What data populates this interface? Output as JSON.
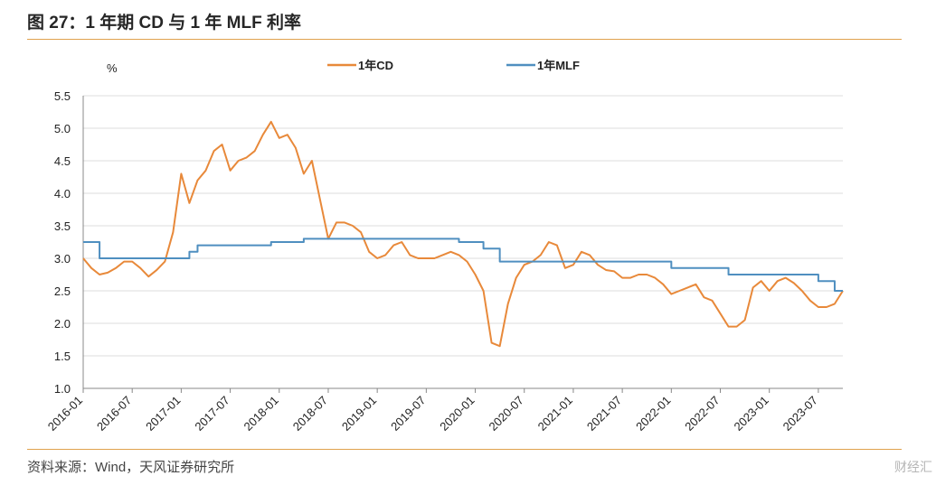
{
  "header": {
    "title": "图 27：1 年期 CD 与 1 年 MLF 利率"
  },
  "footer": {
    "source": "资料来源：Wind，天风证券研究所",
    "watermark": "财经汇"
  },
  "chart_data": {
    "type": "line",
    "ylabel": "%",
    "ylim": [
      1.0,
      5.5
    ],
    "yticks": [
      "1.0",
      "1.5",
      "2.0",
      "2.5",
      "3.0",
      "3.5",
      "4.0",
      "4.5",
      "5.0",
      "5.5"
    ],
    "xticks": [
      "2016-01",
      "2016-07",
      "2017-01",
      "2017-07",
      "2018-01",
      "2018-07",
      "2019-01",
      "2019-07",
      "2020-01",
      "2020-07",
      "2021-01",
      "2021-07",
      "2022-01",
      "2022-07",
      "2023-01",
      "2023-07"
    ],
    "legend_position": "top",
    "series": [
      {
        "name": "1年CD",
        "color": "#e8893a",
        "x": [
          "2016-01",
          "2016-02",
          "2016-03",
          "2016-04",
          "2016-05",
          "2016-06",
          "2016-07",
          "2016-08",
          "2016-09",
          "2016-10",
          "2016-11",
          "2016-12",
          "2017-01",
          "2017-02",
          "2017-03",
          "2017-04",
          "2017-05",
          "2017-06",
          "2017-07",
          "2017-08",
          "2017-09",
          "2017-10",
          "2017-11",
          "2017-12",
          "2018-01",
          "2018-02",
          "2018-03",
          "2018-04",
          "2018-05",
          "2018-06",
          "2018-07",
          "2018-08",
          "2018-09",
          "2018-10",
          "2018-11",
          "2018-12",
          "2019-01",
          "2019-02",
          "2019-03",
          "2019-04",
          "2019-05",
          "2019-06",
          "2019-07",
          "2019-08",
          "2019-09",
          "2019-10",
          "2019-11",
          "2019-12",
          "2020-01",
          "2020-02",
          "2020-03",
          "2020-04",
          "2020-05",
          "2020-06",
          "2020-07",
          "2020-08",
          "2020-09",
          "2020-10",
          "2020-11",
          "2020-12",
          "2021-01",
          "2021-02",
          "2021-03",
          "2021-04",
          "2021-05",
          "2021-06",
          "2021-07",
          "2021-08",
          "2021-09",
          "2021-10",
          "2021-11",
          "2021-12",
          "2022-01",
          "2022-02",
          "2022-03",
          "2022-04",
          "2022-05",
          "2022-06",
          "2022-07",
          "2022-08",
          "2022-09",
          "2022-10",
          "2022-11",
          "2022-12",
          "2023-01",
          "2023-02",
          "2023-03",
          "2023-04",
          "2023-05",
          "2023-06",
          "2023-07",
          "2023-08",
          "2023-09",
          "2023-10"
        ],
        "values": [
          3.0,
          2.85,
          2.75,
          2.78,
          2.85,
          2.95,
          2.95,
          2.85,
          2.72,
          2.82,
          2.95,
          3.4,
          4.3,
          3.85,
          4.2,
          4.35,
          4.65,
          4.75,
          4.35,
          4.5,
          4.55,
          4.65,
          4.9,
          5.1,
          4.85,
          4.9,
          4.7,
          4.3,
          4.5,
          3.9,
          3.3,
          3.55,
          3.55,
          3.5,
          3.4,
          3.1,
          3.0,
          3.05,
          3.2,
          3.25,
          3.05,
          3.0,
          3.0,
          3.0,
          3.05,
          3.1,
          3.05,
          2.95,
          2.75,
          2.5,
          1.7,
          1.65,
          2.3,
          2.7,
          2.9,
          2.95,
          3.05,
          3.25,
          3.2,
          2.85,
          2.9,
          3.1,
          3.05,
          2.9,
          2.82,
          2.8,
          2.7,
          2.7,
          2.75,
          2.75,
          2.7,
          2.6,
          2.45,
          2.5,
          2.55,
          2.6,
          2.4,
          2.35,
          2.15,
          1.95,
          1.95,
          2.05,
          2.55,
          2.65,
          2.5,
          2.65,
          2.7,
          2.62,
          2.5,
          2.35,
          2.25,
          2.25,
          2.3,
          2.5
        ]
      },
      {
        "name": "1年MLF",
        "color": "#4f8fc0",
        "x": [
          "2016-01",
          "2016-02",
          "2016-03",
          "2016-04",
          "2016-05",
          "2016-06",
          "2016-07",
          "2016-08",
          "2016-09",
          "2016-10",
          "2016-11",
          "2016-12",
          "2017-01",
          "2017-02",
          "2017-03",
          "2017-04",
          "2017-05",
          "2017-06",
          "2017-07",
          "2017-08",
          "2017-09",
          "2017-10",
          "2017-11",
          "2017-12",
          "2018-01",
          "2018-02",
          "2018-03",
          "2018-04",
          "2018-05",
          "2018-06",
          "2018-07",
          "2018-08",
          "2018-09",
          "2018-10",
          "2018-11",
          "2018-12",
          "2019-01",
          "2019-02",
          "2019-03",
          "2019-04",
          "2019-05",
          "2019-06",
          "2019-07",
          "2019-08",
          "2019-09",
          "2019-10",
          "2019-11",
          "2019-12",
          "2020-01",
          "2020-02",
          "2020-03",
          "2020-04",
          "2020-05",
          "2020-06",
          "2020-07",
          "2020-08",
          "2020-09",
          "2020-10",
          "2020-11",
          "2020-12",
          "2021-01",
          "2021-02",
          "2021-03",
          "2021-04",
          "2021-05",
          "2021-06",
          "2021-07",
          "2021-08",
          "2021-09",
          "2021-10",
          "2021-11",
          "2021-12",
          "2022-01",
          "2022-02",
          "2022-03",
          "2022-04",
          "2022-05",
          "2022-06",
          "2022-07",
          "2022-08",
          "2022-09",
          "2022-10",
          "2022-11",
          "2022-12",
          "2023-01",
          "2023-02",
          "2023-03",
          "2023-04",
          "2023-05",
          "2023-06",
          "2023-07",
          "2023-08",
          "2023-09",
          "2023-10"
        ],
        "values": [
          3.25,
          3.25,
          3.0,
          3.0,
          3.0,
          3.0,
          3.0,
          3.0,
          3.0,
          3.0,
          3.0,
          3.0,
          3.0,
          3.1,
          3.2,
          3.2,
          3.2,
          3.2,
          3.2,
          3.2,
          3.2,
          3.2,
          3.2,
          3.25,
          3.25,
          3.25,
          3.25,
          3.3,
          3.3,
          3.3,
          3.3,
          3.3,
          3.3,
          3.3,
          3.3,
          3.3,
          3.3,
          3.3,
          3.3,
          3.3,
          3.3,
          3.3,
          3.3,
          3.3,
          3.3,
          3.3,
          3.25,
          3.25,
          3.25,
          3.15,
          3.15,
          2.95,
          2.95,
          2.95,
          2.95,
          2.95,
          2.95,
          2.95,
          2.95,
          2.95,
          2.95,
          2.95,
          2.95,
          2.95,
          2.95,
          2.95,
          2.95,
          2.95,
          2.95,
          2.95,
          2.95,
          2.95,
          2.85,
          2.85,
          2.85,
          2.85,
          2.85,
          2.85,
          2.85,
          2.75,
          2.75,
          2.75,
          2.75,
          2.75,
          2.75,
          2.75,
          2.75,
          2.75,
          2.75,
          2.75,
          2.65,
          2.65,
          2.5,
          2.5
        ]
      }
    ]
  }
}
